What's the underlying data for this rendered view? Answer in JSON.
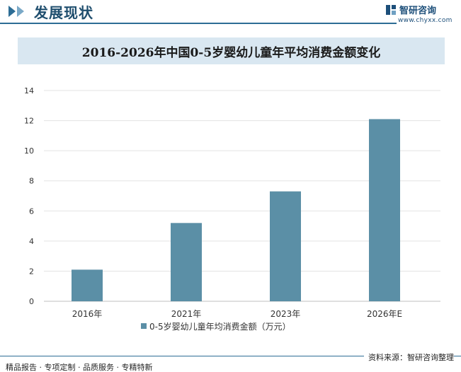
{
  "header": {
    "title": "发展现状"
  },
  "logo": {
    "name": "智研咨询",
    "url": "www.chyxx.com"
  },
  "chart_data": {
    "type": "bar",
    "title": "2016-2026年中国0-5岁婴幼儿童年平均消费金额变化",
    "categories": [
      "2016年",
      "2021年",
      "2023年",
      "2026年E"
    ],
    "series": [
      {
        "name": "0-5岁婴幼儿童年均消费金额（万元）",
        "values": [
          2.1,
          5.2,
          7.3,
          12.1
        ]
      }
    ],
    "ylim": [
      0,
      14
    ],
    "yticks": [
      "0",
      "2",
      "4",
      "6",
      "8",
      "10",
      "12",
      "14"
    ],
    "grid": true,
    "legend": "bottom",
    "bar_color": "#5b8fa6"
  },
  "footer": {
    "left": "精品报告 · 专项定制 · 品质服务 · 专精特新",
    "right": "资料来源：智研咨询整理"
  }
}
